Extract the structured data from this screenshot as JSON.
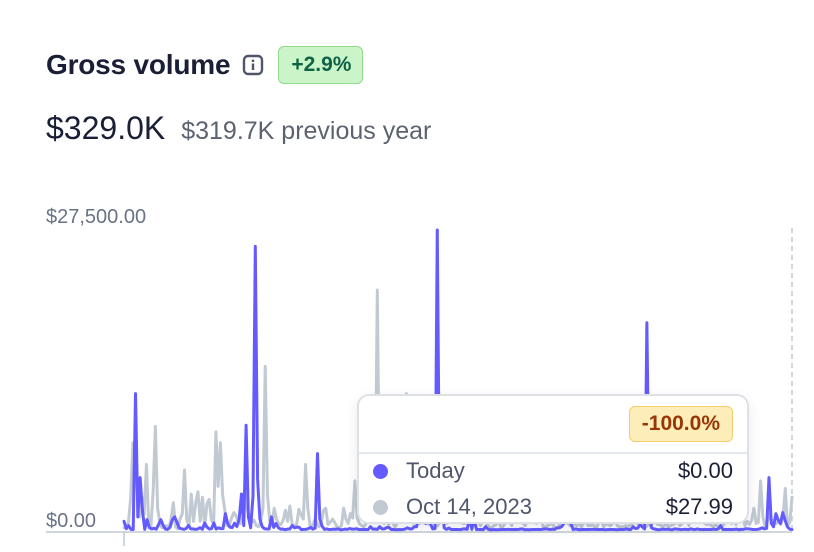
{
  "header": {
    "title": "Gross volume",
    "info_icon": "info-icon",
    "change_badge": "+2.9%",
    "badge_bg": "#cbf4c9",
    "badge_fg": "#0e6245"
  },
  "totals": {
    "current": "$329.0K",
    "previous": "$319.7K previous year"
  },
  "chart_data": {
    "type": "line",
    "title": "",
    "xlabel": "",
    "ylabel": "",
    "ylim": [
      0,
      27500
    ],
    "y_ticks": [
      "$27,500.00",
      "$0.00"
    ],
    "grid": false,
    "series": [
      {
        "name": "",
        "color": "#635bff",
        "values": [
          800,
          120,
          400,
          60,
          50,
          12500,
          1200,
          4800,
          1800,
          60,
          950,
          220,
          90,
          160,
          70,
          500,
          950,
          420,
          80,
          60,
          260,
          950,
          1200,
          700,
          180,
          110,
          60,
          140,
          420,
          100,
          100,
          60,
          90,
          220,
          60,
          640,
          280,
          90,
          120,
          650,
          90,
          200,
          130,
          130,
          1500,
          600,
          260,
          220,
          620,
          320,
          1000,
          3300,
          400,
          9600,
          1200,
          200,
          3100,
          26000,
          4600,
          1000,
          300,
          120,
          90,
          90,
          1200,
          240,
          600,
          220,
          80,
          90,
          30,
          80,
          100,
          400,
          200,
          260,
          250,
          30,
          60,
          60,
          120,
          240,
          80,
          170,
          7000,
          1000,
          350,
          60,
          100,
          40,
          50,
          80,
          70,
          100,
          20,
          40,
          80,
          60,
          140,
          80,
          80,
          120,
          40,
          40,
          60,
          40,
          40,
          300,
          80,
          90,
          60,
          300,
          100,
          100,
          220,
          240,
          50,
          60,
          20,
          30,
          30,
          50,
          80,
          200,
          100,
          100,
          300,
          300,
          1200,
          11500,
          700,
          600,
          9000,
          600,
          100,
          120,
          27500,
          1800,
          3300,
          200,
          60,
          180,
          40,
          40,
          40,
          50,
          30,
          90,
          100,
          60,
          1200,
          60,
          1100,
          40,
          40,
          60,
          30,
          300,
          80,
          20,
          20,
          40,
          20,
          30,
          40,
          40,
          40,
          60,
          40,
          40,
          60,
          40,
          80,
          100,
          20,
          40,
          20,
          40,
          40,
          40,
          60,
          40,
          80,
          100,
          80,
          40,
          80,
          60,
          200,
          200,
          320,
          600,
          1200,
          4400,
          600,
          40,
          100,
          60,
          20,
          60,
          40,
          40,
          40,
          60,
          60,
          40,
          40,
          40,
          40,
          20,
          40,
          60,
          40,
          40,
          20,
          40,
          40,
          40,
          100,
          40,
          40,
          300,
          140,
          160,
          500,
          300,
          100,
          19000,
          2000,
          200,
          100,
          60,
          20,
          40,
          80,
          60,
          80,
          40,
          20,
          100,
          80,
          60,
          40,
          60,
          60,
          40,
          100,
          60,
          40,
          100,
          40,
          40,
          60,
          40,
          60,
          40,
          80,
          40,
          100,
          400,
          40,
          60,
          40,
          40,
          40,
          60,
          80,
          20,
          60,
          60,
          120,
          100,
          80,
          40,
          40,
          60,
          100,
          200,
          100,
          150,
          4800,
          600,
          300,
          1500,
          900,
          600,
          1600,
          900,
          300,
          80,
          40
        ]
      },
      {
        "name": "",
        "color": "#c1c9d2",
        "values": [
          200,
          300,
          700,
          3000,
          8000,
          7000,
          3500,
          1200,
          3000,
          1500,
          6000,
          600,
          300,
          3500,
          9500,
          2000,
          600,
          200,
          300,
          400,
          200,
          1000,
          2500,
          300,
          100,
          1000,
          1500,
          5500,
          900,
          400,
          3300,
          800,
          2500,
          3500,
          800,
          3000,
          300,
          2400,
          2800,
          900,
          600,
          9000,
          4000,
          8000,
          3200,
          1800,
          400,
          500,
          1100,
          1600,
          1300,
          700,
          600,
          1000,
          4200,
          1800,
          1300,
          700,
          900,
          400,
          300,
          800,
          2000,
          15000,
          3200,
          900,
          400,
          2000,
          1000,
          600,
          500,
          900,
          1800,
          800,
          2200,
          500,
          400,
          500,
          1900,
          1400,
          1000,
          6000,
          2000,
          400,
          300,
          900,
          700,
          300,
          600,
          1800,
          2000,
          500,
          700,
          1000,
          700,
          300,
          200,
          400,
          2000,
          1000,
          600,
          1500,
          1100,
          4500,
          1100,
          600,
          400,
          300,
          600,
          6500,
          1300,
          700,
          1200,
          22000,
          2000,
          800,
          600,
          1000,
          500,
          1000,
          600,
          300,
          700,
          900,
          2400,
          1400,
          12500,
          2000,
          1000,
          600,
          800,
          1000,
          600,
          1800,
          1000,
          800,
          500,
          1000,
          1500,
          300,
          400,
          800,
          6000,
          2500,
          600,
          1200,
          1500,
          800,
          700,
          800,
          1200,
          600,
          600,
          3000,
          900,
          400,
          600,
          800,
          1000,
          400,
          800,
          1000,
          500,
          300,
          200,
          400,
          500,
          1000,
          300,
          300,
          600,
          800,
          800,
          400,
          1500,
          700,
          1600,
          800,
          600,
          400,
          900,
          1500,
          1100,
          700,
          600,
          800,
          1000,
          300,
          300,
          400,
          500,
          600,
          300,
          200,
          300,
          1800,
          800,
          800,
          600,
          400,
          600,
          500,
          400,
          600,
          300,
          600,
          800,
          400,
          400,
          500,
          300,
          300,
          800,
          800,
          300,
          600,
          500,
          400,
          600,
          1200,
          400,
          300,
          300,
          300,
          400,
          300,
          500,
          600,
          700,
          600,
          1000,
          300,
          300,
          300,
          500,
          400,
          700,
          800,
          500,
          500,
          300,
          400,
          600,
          300,
          400,
          500,
          600,
          800,
          400,
          600,
          800,
          1500,
          400,
          3000,
          800,
          2000,
          1000,
          900,
          1400,
          600,
          500,
          600,
          400,
          300,
          500,
          300,
          200,
          400,
          600,
          900,
          1200,
          600,
          2000,
          500,
          8500,
          2200,
          1500,
          400,
          800,
          500,
          900,
          2000,
          600,
          700,
          4500,
          1200,
          300,
          800,
          1500,
          900,
          800,
          600,
          800,
          500,
          1200,
          3800,
          400,
          700,
          3000
        ]
      }
    ]
  },
  "tooltip": {
    "change": "-100.0%",
    "rows": [
      {
        "label": "Today",
        "value": "$0.00",
        "color": "#635bff"
      },
      {
        "label": "Oct 14, 2023",
        "value": "$27.99",
        "color": "#c1c9d2"
      }
    ]
  }
}
